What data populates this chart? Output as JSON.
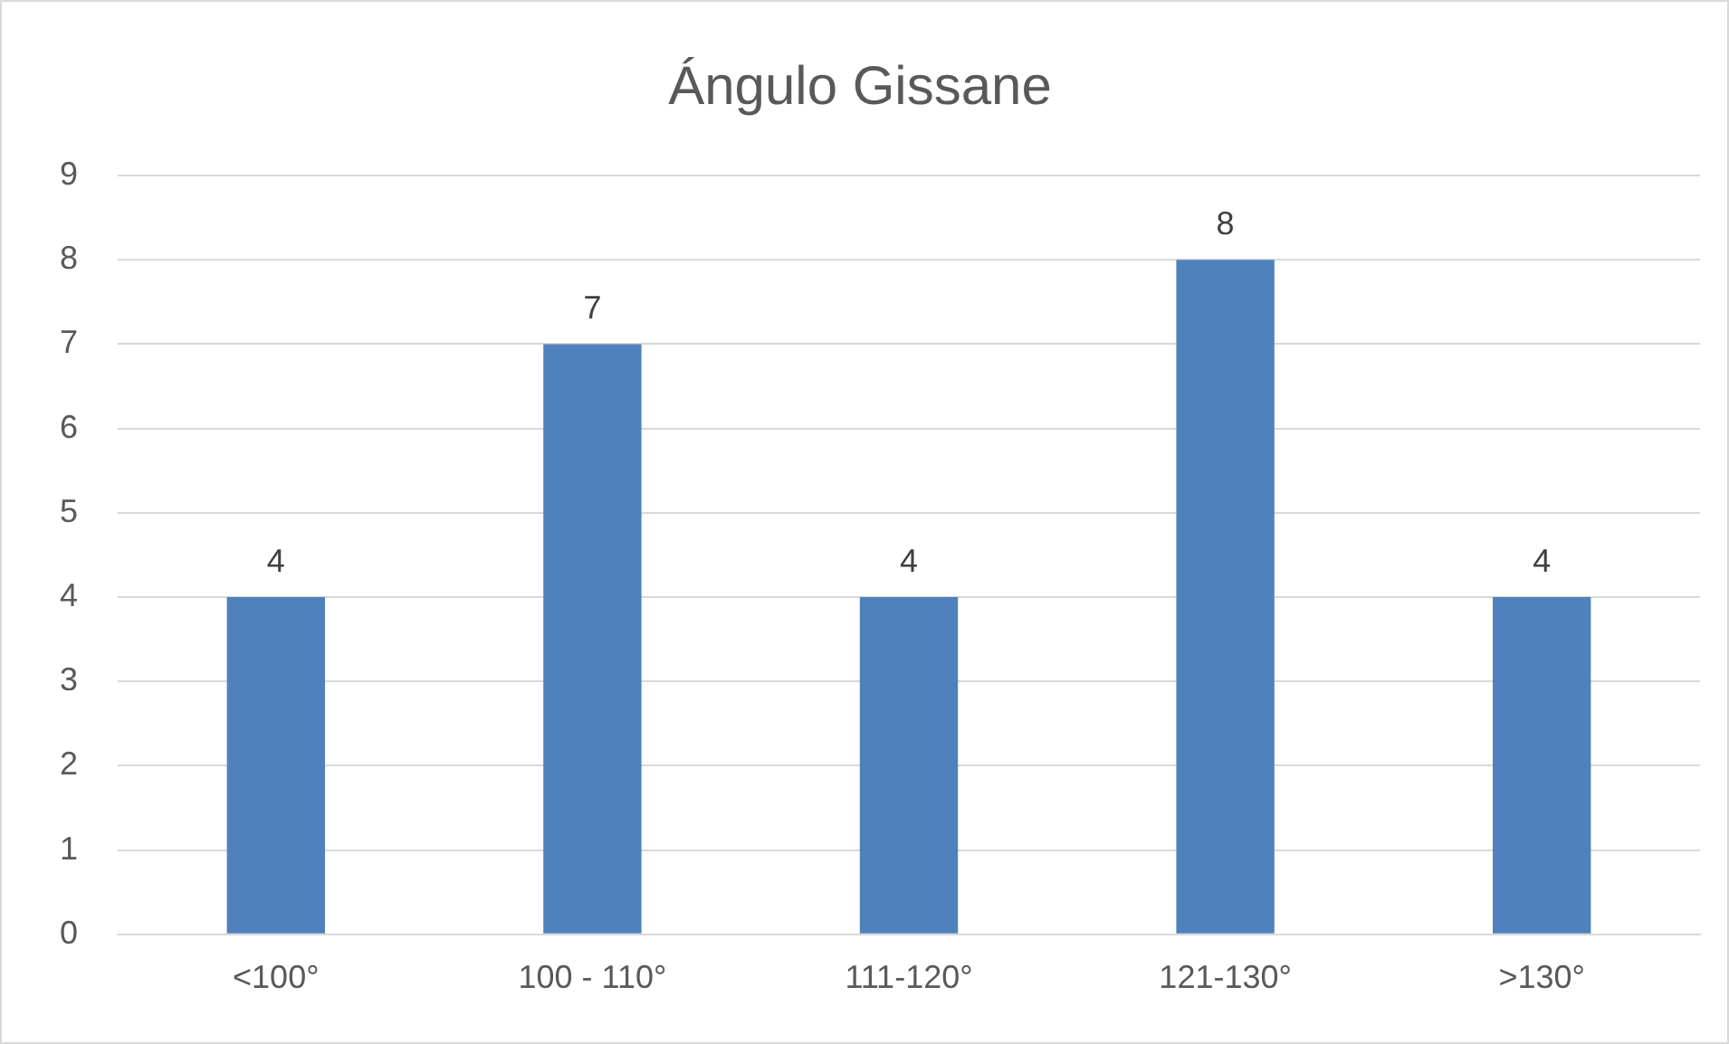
{
  "chart_data": {
    "type": "bar",
    "title": "Ángulo Gissane",
    "categories": [
      "<100°",
      "100 - 110°",
      "111-120°",
      "121-130°",
      ">130°"
    ],
    "values": [
      4,
      7,
      4,
      8,
      4
    ],
    "color": "#4f81bd",
    "ylim": [
      0,
      9
    ],
    "yticks": [
      0,
      1,
      2,
      3,
      4,
      5,
      6,
      7,
      8,
      9
    ],
    "grid": "y",
    "data_labels": true,
    "legend": false
  }
}
